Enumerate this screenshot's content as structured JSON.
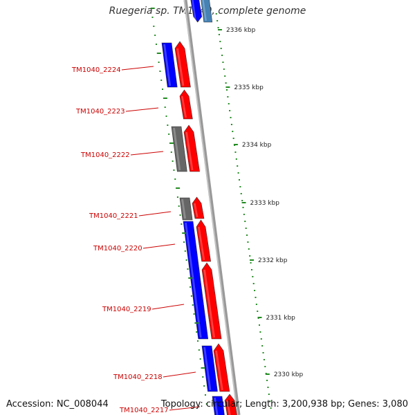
{
  "map": {
    "title": "Ruegeria sp. TM1040, complete genome",
    "accession": "Accession: NC_008044",
    "summary": "Topology: circular; Length: 3,200,938 bp; Genes: 3,080"
  },
  "ruler": {
    "ticks": [
      "2336 kbp",
      "2335 kbp",
      "2334 kbp",
      "2333 kbp",
      "2332 kbp",
      "2331 kbp",
      "2330 kbp"
    ]
  },
  "genes": [
    "TM1040_2224",
    "TM1040_2223",
    "TM1040_2222",
    "TM1040_2221",
    "TM1040_2220",
    "TM1040_2219",
    "TM1040_2218",
    "TM1040_2217"
  ],
  "colors": {
    "cds_forward": "#ff0000",
    "cds_reverse": "#0000ff",
    "gene": "#666666",
    "previous_gene": "#4682b4",
    "backbone": "#888888",
    "tick_marks": "#228b22",
    "gene_label": "#cc0000",
    "tick_label": "#222222"
  }
}
